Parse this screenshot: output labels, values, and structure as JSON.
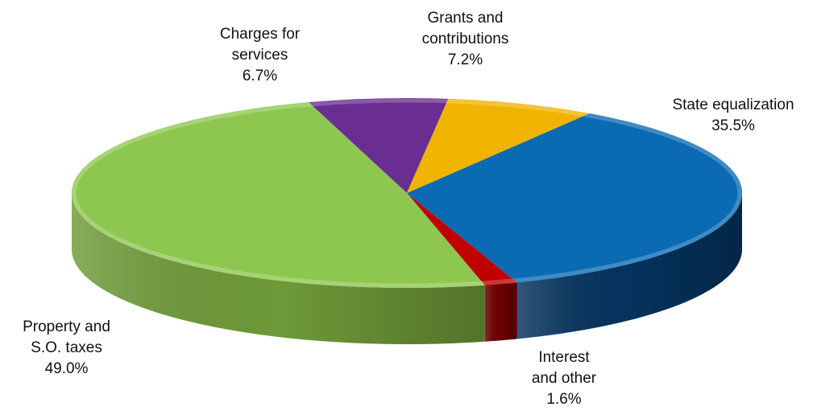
{
  "chart_data": {
    "type": "pie",
    "style": "3d-tilted",
    "slices": [
      {
        "name": "State equalization",
        "label_lines": [
          "State equalization"
        ],
        "value_label": "35.5%",
        "value": 35.5,
        "color": "#0A6BB3",
        "side_color": "#05335E"
      },
      {
        "name": "Interest and other",
        "label_lines": [
          "Interest",
          "and other"
        ],
        "value_label": "1.6%",
        "value": 1.6,
        "color": "#C00000",
        "side_color": "#6B0000"
      },
      {
        "name": "Property and S.O. taxes",
        "label_lines": [
          "Property and",
          "S.O. taxes"
        ],
        "value_label": "49.0%",
        "value": 49.0,
        "color": "#8EC750",
        "side_color": "#6E9A38"
      },
      {
        "name": "Charges for services",
        "label_lines": [
          "Charges for",
          "services"
        ],
        "value_label": "6.7%",
        "value": 6.7,
        "color": "#6A2D91",
        "side_color": "#3E1A55"
      },
      {
        "name": "Grants and contributions",
        "label_lines": [
          "Grants and",
          "contributions"
        ],
        "value_label": "7.2%",
        "value": 7.2,
        "color": "#F0B400",
        "side_color": "#A07800"
      }
    ],
    "legend": "none"
  }
}
